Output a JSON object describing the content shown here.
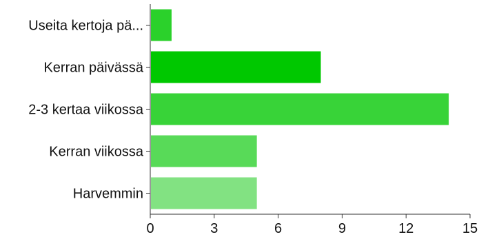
{
  "chart_data": {
    "type": "bar",
    "orientation": "horizontal",
    "title": "",
    "xlabel": "",
    "ylabel": "",
    "categories": [
      "Useita kertoja pä...",
      "Kerran päivässä",
      "2-3 kertaa viikossa",
      "Kerran viikossa",
      "Harvemmin"
    ],
    "values": [
      1,
      8,
      14,
      5,
      5
    ],
    "bar_colors": [
      "#2bd12b",
      "#00c800",
      "#38d338",
      "#58da58",
      "#82e282"
    ],
    "xlim": [
      0,
      15
    ],
    "xticks": [
      "0",
      "3",
      "6",
      "9",
      "12",
      "15"
    ],
    "grid": false,
    "legend": "none"
  }
}
